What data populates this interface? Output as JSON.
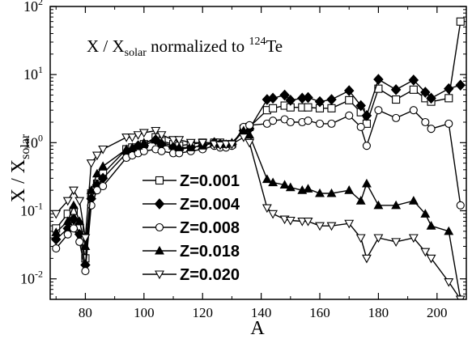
{
  "chart_data": {
    "type": "line",
    "title_parts": {
      "main": "X / X",
      "sub": "solar",
      "rest": " normalized to ",
      "sup": "124",
      "tail": "Te"
    },
    "xlabel": "A",
    "ylabel_parts": {
      "main": "X / X",
      "sub": "solar"
    },
    "xlim": [
      68,
      210
    ],
    "ylim": [
      0.005,
      100
    ],
    "y_scale": "log",
    "x_ticks": [
      80,
      100,
      120,
      140,
      160,
      180,
      200
    ],
    "x_tick_labels": [
      "80",
      "100",
      "120",
      "140",
      "160",
      "180",
      "200"
    ],
    "y_ticks": [
      {
        "value": 0.01,
        "base": "10",
        "exp": "-2"
      },
      {
        "value": 0.1,
        "base": "10",
        "exp": "-1"
      },
      {
        "value": 1,
        "base": "10",
        "exp": "0"
      },
      {
        "value": 10,
        "base": "10",
        "exp": "1"
      },
      {
        "value": 100,
        "base": "10",
        "exp": "2"
      }
    ],
    "legend_position": "center-left",
    "grid": false,
    "series": [
      {
        "name": "Z=0.001",
        "marker": "square-open",
        "x": [
          70,
          74,
          76,
          78,
          80,
          82,
          84,
          86,
          94,
          96,
          98,
          100,
          104,
          106,
          110,
          112,
          116,
          120,
          124,
          126,
          128,
          130,
          134,
          136,
          142,
          144,
          148,
          150,
          154,
          156,
          160,
          164,
          170,
          174,
          176,
          180,
          186,
          192,
          196,
          198,
          204,
          208
        ],
        "y": [
          0.055,
          0.09,
          0.1,
          0.055,
          0.02,
          0.18,
          0.25,
          0.35,
          0.8,
          0.85,
          0.8,
          0.95,
          1.2,
          1.05,
          0.95,
          0.9,
          0.95,
          1.0,
          1.0,
          1.0,
          0.95,
          0.95,
          1.6,
          1.7,
          3.0,
          3.2,
          3.5,
          3.3,
          3.3,
          3.3,
          3.2,
          3.2,
          4.2,
          2.8,
          1.9,
          6.2,
          4.3,
          6.0,
          4.5,
          4.0,
          4.5,
          60
        ]
      },
      {
        "name": "Z=0.004",
        "marker": "diamond-filled",
        "x": [
          70,
          74,
          76,
          78,
          80,
          82,
          84,
          86,
          94,
          96,
          98,
          100,
          104,
          106,
          110,
          112,
          116,
          120,
          124,
          126,
          128,
          130,
          134,
          136,
          142,
          144,
          148,
          150,
          154,
          156,
          160,
          164,
          170,
          174,
          176,
          180,
          186,
          192,
          196,
          198,
          204,
          208
        ],
        "y": [
          0.038,
          0.055,
          0.075,
          0.045,
          0.016,
          0.15,
          0.24,
          0.3,
          0.7,
          0.75,
          0.9,
          0.9,
          1.1,
          0.95,
          0.85,
          0.8,
          0.85,
          0.9,
          1.0,
          0.95,
          0.9,
          0.95,
          1.5,
          1.6,
          4.3,
          4.5,
          5.0,
          4.2,
          4.5,
          4.6,
          4.0,
          4.3,
          5.8,
          3.5,
          2.5,
          8.5,
          6.0,
          8.3,
          5.5,
          4.5,
          6.2,
          7.0
        ]
      },
      {
        "name": "Z=0.008",
        "marker": "circle-open",
        "x": [
          70,
          74,
          76,
          78,
          80,
          82,
          84,
          86,
          94,
          96,
          98,
          100,
          104,
          106,
          110,
          112,
          116,
          120,
          124,
          126,
          128,
          130,
          134,
          136,
          142,
          144,
          148,
          150,
          154,
          156,
          160,
          164,
          170,
          174,
          176,
          180,
          186,
          192,
          196,
          198,
          204,
          208
        ],
        "y": [
          0.028,
          0.045,
          0.055,
          0.035,
          0.013,
          0.12,
          0.2,
          0.23,
          0.6,
          0.65,
          0.7,
          0.75,
          0.8,
          0.75,
          0.7,
          0.7,
          0.75,
          0.8,
          0.9,
          0.85,
          0.85,
          0.9,
          1.7,
          1.8,
          1.9,
          2.1,
          2.2,
          2.0,
          2.0,
          2.1,
          1.9,
          1.9,
          2.5,
          1.7,
          0.9,
          3.0,
          2.3,
          3.0,
          2.0,
          1.6,
          1.9,
          0.12
        ]
      },
      {
        "name": "Z=0.018",
        "marker": "triangle-up-filled",
        "x": [
          70,
          74,
          76,
          78,
          80,
          82,
          84,
          86,
          94,
          96,
          98,
          100,
          104,
          106,
          110,
          112,
          116,
          120,
          124,
          126,
          128,
          130,
          134,
          136,
          142,
          144,
          148,
          150,
          154,
          156,
          160,
          164,
          170,
          174,
          176,
          180,
          186,
          192,
          196,
          198,
          204,
          208
        ],
        "y": [
          0.048,
          0.07,
          0.12,
          0.07,
          0.03,
          0.2,
          0.35,
          0.45,
          0.8,
          0.85,
          0.9,
          1.0,
          1.1,
          1.0,
          0.9,
          0.85,
          0.85,
          0.9,
          1.0,
          0.95,
          0.95,
          1.0,
          1.5,
          1.3,
          0.29,
          0.26,
          0.24,
          0.22,
          0.2,
          0.21,
          0.18,
          0.18,
          0.2,
          0.14,
          0.25,
          0.12,
          0.12,
          0.14,
          0.09,
          0.06,
          0.05,
          0.005
        ]
      },
      {
        "name": "Z=0.020",
        "marker": "triangle-down-open",
        "x": [
          70,
          74,
          76,
          78,
          80,
          82,
          84,
          86,
          94,
          96,
          98,
          100,
          104,
          106,
          110,
          112,
          116,
          120,
          124,
          126,
          128,
          130,
          134,
          136,
          142,
          144,
          148,
          150,
          154,
          156,
          160,
          164,
          170,
          174,
          176,
          180,
          186,
          192,
          196,
          198,
          204,
          208
        ],
        "y": [
          0.09,
          0.14,
          0.2,
          0.14,
          0.04,
          0.5,
          0.65,
          0.8,
          1.2,
          1.2,
          1.3,
          1.4,
          1.5,
          1.3,
          1.1,
          1.1,
          1.0,
          1.0,
          0.95,
          0.92,
          0.95,
          0.95,
          1.2,
          1.0,
          0.11,
          0.09,
          0.075,
          0.072,
          0.07,
          0.07,
          0.06,
          0.06,
          0.065,
          0.04,
          0.02,
          0.04,
          0.035,
          0.04,
          0.025,
          0.02,
          0.009,
          0.005
        ]
      }
    ]
  }
}
